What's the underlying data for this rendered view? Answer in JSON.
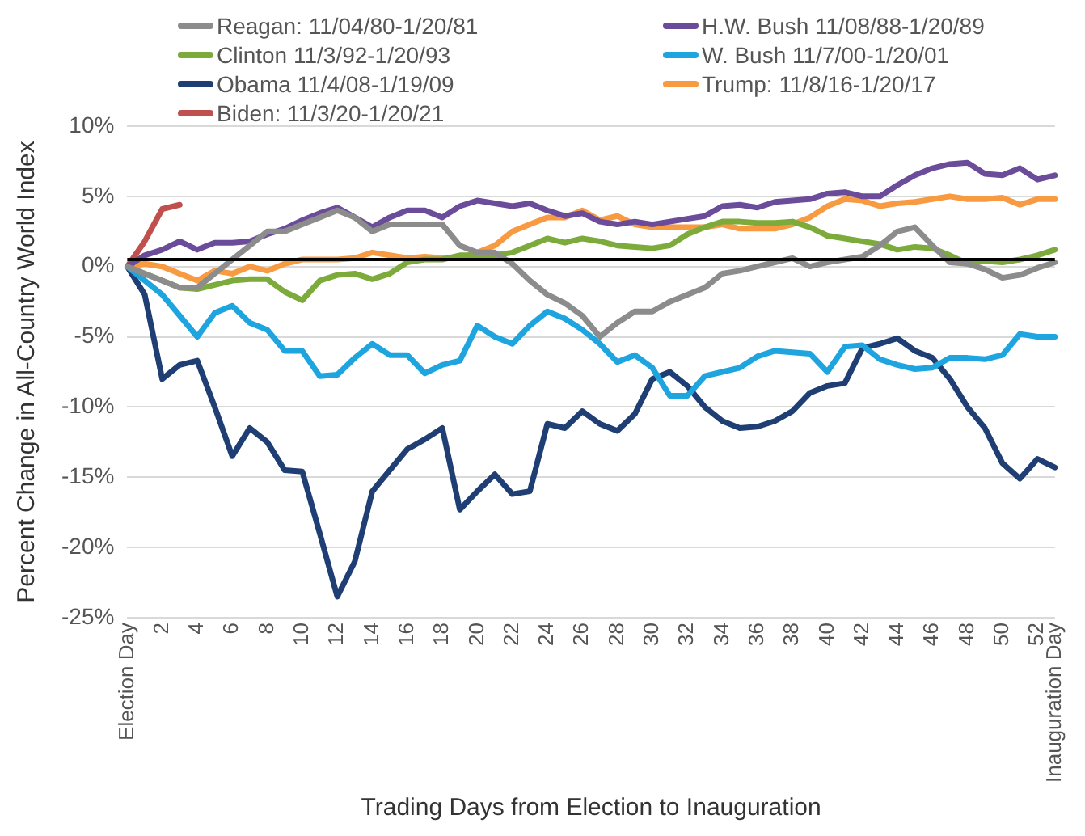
{
  "chart_data": {
    "type": "line",
    "xlabel": "Trading Days from Election to Inauguration",
    "ylabel": "Percent Change in All-Country World Index",
    "categories": [
      "Election Day",
      null,
      "2",
      null,
      "4",
      null,
      "6",
      null,
      "8",
      null,
      "10",
      null,
      "12",
      null,
      "14",
      null,
      "16",
      null,
      "18",
      null,
      "20",
      null,
      "22",
      null,
      "24",
      null,
      "26",
      null,
      "28",
      null,
      "30",
      null,
      "32",
      null,
      "34",
      null,
      "36",
      null,
      "38",
      null,
      "40",
      null,
      "42",
      null,
      "44",
      null,
      "46",
      null,
      "48",
      null,
      "50",
      null,
      "52",
      "Inauguration Day"
    ],
    "series": [
      {
        "name": "Reagan: 11/04/80-1/20/81",
        "color": "#8c8c8c",
        "values": [
          0,
          -0.5,
          -1,
          -1.5,
          -1.5,
          -0.5,
          0.5,
          1.5,
          2.5,
          2.5,
          3,
          3.5,
          4,
          3.5,
          2.5,
          3,
          3,
          3,
          3,
          1.5,
          1,
          1,
          0.2,
          -1,
          -2,
          -2.6,
          -3.5,
          -5,
          -4,
          -3.2,
          -3.2,
          -2.5,
          -2,
          -1.5,
          -0.5,
          -0.3,
          0,
          0.3,
          0.6,
          0,
          0.3,
          0.5,
          0.7,
          1.5,
          2.5,
          2.8,
          1.5,
          0.3,
          0.2,
          -0.2,
          -0.8,
          -0.6,
          -0.1,
          0.3
        ]
      },
      {
        "name": "H.W. Bush 11/08/88-1/20/89",
        "color": "#6b4c9a",
        "values": [
          0,
          0.8,
          1.2,
          1.8,
          1.2,
          1.7,
          1.7,
          1.8,
          2.3,
          2.7,
          3.3,
          3.8,
          4.2,
          3.5,
          2.8,
          3.5,
          4,
          4,
          3.5,
          4.3,
          4.7,
          4.5,
          4.3,
          4.5,
          4,
          3.6,
          3.8,
          3.2,
          3,
          3.2,
          3,
          3.2,
          3.4,
          3.6,
          4.3,
          4.4,
          4.2,
          4.6,
          4.7,
          4.8,
          5.2,
          5.3,
          5,
          5,
          5.8,
          6.5,
          7,
          7.3,
          7.4,
          6.6,
          6.5,
          7,
          6.2,
          6.5
        ]
      },
      {
        "name": "Clinton 11/3/92-1/20/93",
        "color": "#7cab3c",
        "values": [
          0,
          -0.5,
          -1,
          -1.5,
          -1.6,
          -1.3,
          -1,
          -0.9,
          -0.9,
          -1.8,
          -2.4,
          -1,
          -0.6,
          -0.5,
          -0.9,
          -0.5,
          0.3,
          0.5,
          0.5,
          0.8,
          0.8,
          0.8,
          1,
          1.5,
          2,
          1.7,
          2,
          1.8,
          1.5,
          1.4,
          1.3,
          1.5,
          2.3,
          2.8,
          3.2,
          3.2,
          3.1,
          3.1,
          3.2,
          2.8,
          2.2,
          2,
          1.8,
          1.6,
          1.2,
          1.4,
          1.3,
          0.8,
          0.2,
          0.4,
          0.3,
          0.5,
          0.8,
          1.2
        ]
      },
      {
        "name": "W. Bush 11/7/00-1/20/01",
        "color": "#1ea5e0",
        "values": [
          0,
          -1,
          -2,
          -3.5,
          -5,
          -3.3,
          -2.8,
          -4,
          -4.5,
          -6,
          -6,
          -7.8,
          -7.7,
          -6.5,
          -5.5,
          -6.3,
          -6.3,
          -7.6,
          -7,
          -6.7,
          -4.2,
          -5,
          -5.5,
          -4.2,
          -3.2,
          -3.7,
          -4.5,
          -5.5,
          -6.8,
          -6.3,
          -7.2,
          -9.2,
          -9.2,
          -7.8,
          -7.5,
          -7.2,
          -6.4,
          -6,
          -6.1,
          -6.2,
          -7.5,
          -5.7,
          -5.6,
          -6.6,
          -7,
          -7.3,
          -7.2,
          -6.5,
          -6.5,
          -6.6,
          -6.3,
          -4.8,
          -5,
          -5
        ]
      },
      {
        "name": "Obama 11/4/08-1/19/09",
        "color": "#1f3f74",
        "values": [
          0,
          -2,
          -8,
          -7,
          -6.7,
          -10,
          -13.5,
          -11.5,
          -12.5,
          -14.5,
          -14.6,
          -19,
          -23.5,
          -21,
          -16,
          -14.5,
          -13,
          -12.3,
          -11.5,
          -17.3,
          -16,
          -14.8,
          -16.2,
          -16,
          -11.2,
          -11.5,
          -10.3,
          -11.2,
          -11.7,
          -10.5,
          -8,
          -7.5,
          -8.5,
          -10,
          -11,
          -11.5,
          -11.4,
          -11,
          -10.3,
          -9,
          -8.5,
          -8.3,
          -5.8,
          -5.5,
          -5.1,
          -6,
          -6.5,
          -8,
          -10,
          -11.5,
          -14,
          -15.1,
          -13.7,
          -14.3
        ]
      },
      {
        "name": "Trump: 11/8/16-1/20/17",
        "color": "#f79a42",
        "values": [
          0,
          0.2,
          0,
          -0.5,
          -1,
          -0.3,
          -0.5,
          0,
          -0.3,
          0.2,
          0.5,
          0.5,
          0.5,
          0.6,
          1,
          0.8,
          0.6,
          0.7,
          0.6,
          0.6,
          1,
          1.5,
          2.5,
          3,
          3.5,
          3.5,
          4,
          3.3,
          3.6,
          3,
          2.8,
          2.8,
          2.8,
          2.8,
          3,
          2.7,
          2.7,
          2.7,
          3,
          3.5,
          4.3,
          4.8,
          4.7,
          4.3,
          4.5,
          4.6,
          4.8,
          5,
          4.8,
          4.8,
          4.9,
          4.4,
          4.8,
          4.8
        ]
      },
      {
        "name": "Biden: 11/3/20-1/20/21",
        "color": "#c0504d",
        "values": [
          0,
          1.8,
          4.1,
          4.4,
          null,
          null,
          null,
          null,
          null,
          null,
          null,
          null,
          null,
          null,
          null,
          null,
          null,
          null,
          null,
          null,
          null,
          null,
          null,
          null,
          null,
          null,
          null,
          null,
          null,
          null,
          null,
          null,
          null,
          null,
          null,
          null,
          null,
          null,
          null,
          null,
          null,
          null,
          null,
          null,
          null,
          null,
          null,
          null,
          null,
          null,
          null,
          null,
          null,
          null
        ]
      }
    ],
    "ylim": [
      -25,
      10
    ],
    "yticks": [
      {
        "value": -25,
        "label": "-25%"
      },
      {
        "value": -20,
        "label": "-20%"
      },
      {
        "value": -15,
        "label": "-15%"
      },
      {
        "value": -10,
        "label": "-10%"
      },
      {
        "value": -5,
        "label": "-5%"
      },
      {
        "value": 0,
        "label": "0%"
      },
      {
        "value": 5,
        "label": "5%"
      },
      {
        "value": 10,
        "label": "10%"
      }
    ],
    "ref_lines": [
      {
        "axis": "y",
        "value": 0.5,
        "color": "#000000"
      }
    ],
    "grid": "y",
    "legend": "top",
    "marker": "none",
    "line_style": "solid"
  }
}
